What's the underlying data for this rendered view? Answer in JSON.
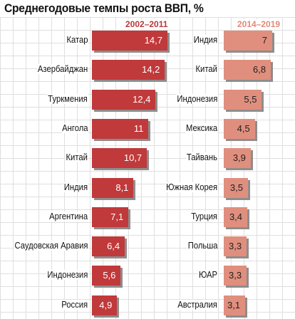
{
  "chart_data": [
    {
      "type": "bar",
      "orientation": "horizontal",
      "title": "Среднегодовые темпы роста ВВП, %",
      "period": "2002–2011",
      "color": "#c0393b",
      "categories": [
        "Катар",
        "Азербайджан",
        "Туркмения",
        "Ангола",
        "Китай",
        "Индия",
        "Аргентина",
        "Саудовская Аравия",
        "Индонезия",
        "Россия"
      ],
      "values": [
        14.7,
        14.2,
        12.4,
        11,
        10.7,
        8.1,
        7.1,
        6.4,
        5.6,
        4.9
      ],
      "value_labels": [
        "14,7",
        "14,2",
        "12,4",
        "11",
        "10,7",
        "8,1",
        "7,1",
        "6,4",
        "5,6",
        "4,9"
      ]
    },
    {
      "type": "bar",
      "orientation": "horizontal",
      "period": "2014–2019",
      "color": "#e08f7e",
      "categories": [
        "Индия",
        "Китай",
        "Индонезия",
        "Мексика",
        "Тайвань",
        "Южная Корея",
        "Турция",
        "Польша",
        "ЮАР",
        "Австралия"
      ],
      "values": [
        7,
        6.8,
        5.5,
        4.5,
        3.9,
        3.5,
        3.4,
        3.3,
        3.3,
        3.1
      ],
      "value_labels": [
        "7",
        "6,8",
        "5,5",
        "4,5",
        "3,9",
        "3,5",
        "3,4",
        "3,3",
        "3,3",
        "3,1"
      ]
    }
  ]
}
